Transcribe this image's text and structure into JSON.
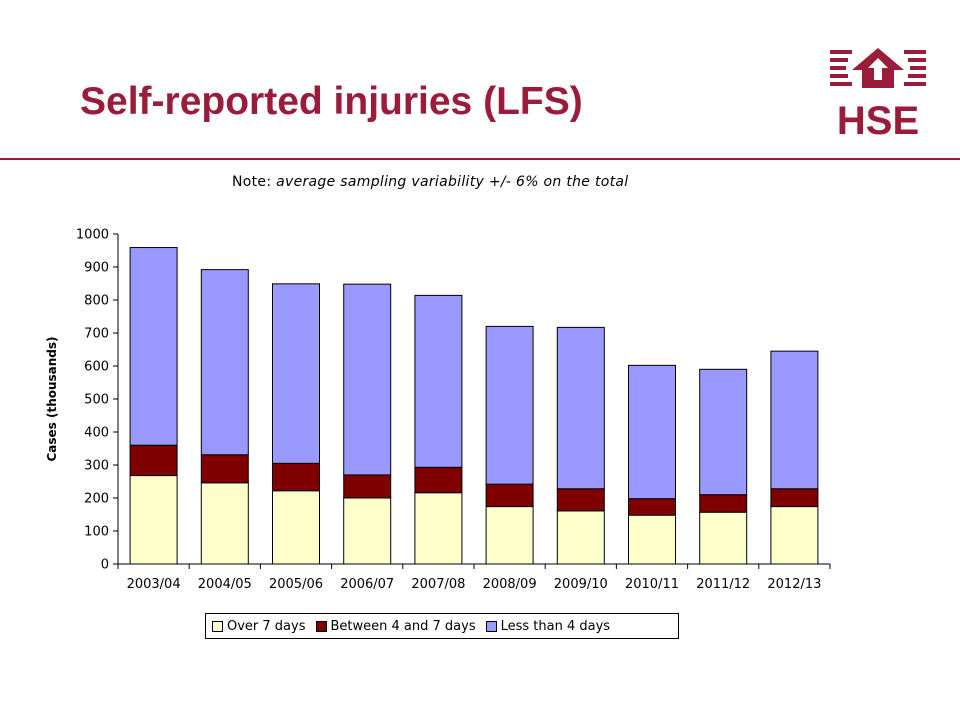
{
  "slide": {
    "title": "Self-reported injuries (LFS)",
    "logo_text": "HSE",
    "note_label": "Note:",
    "note_text": "average sampling variability +/- 6% on the total"
  },
  "colors": {
    "title": "#9b1b3a",
    "over7": "#ffffcc",
    "between4and7": "#800000",
    "lessThan4": "#9999ff"
  },
  "chart_data": {
    "type": "bar",
    "stacked": true,
    "categories": [
      "2003/04",
      "2004/05",
      "2005/06",
      "2006/07",
      "2007/08",
      "2008/09",
      "2009/10",
      "2010/11",
      "2011/12",
      "2012/13"
    ],
    "series": [
      {
        "name": "Over 7 days",
        "color": "#ffffcc",
        "values": [
          268,
          246,
          222,
          200,
          216,
          174,
          161,
          148,
          157,
          174
        ]
      },
      {
        "name": "Between 4 and 7 days",
        "color": "#800000",
        "values": [
          92,
          85,
          83,
          70,
          77,
          68,
          67,
          50,
          53,
          54
        ]
      },
      {
        "name": "Less than 4 days",
        "color": "#9999ff",
        "values": [
          599,
          561,
          544,
          578,
          521,
          478,
          489,
          404,
          380,
          417
        ]
      }
    ],
    "ylabel": "Cases (thousands)",
    "xlabel": "",
    "ylim": [
      0,
      1000
    ],
    "yticks": [
      0,
      100,
      200,
      300,
      400,
      500,
      600,
      700,
      800,
      900,
      1000
    ],
    "grid": false,
    "legend": "bottom"
  }
}
